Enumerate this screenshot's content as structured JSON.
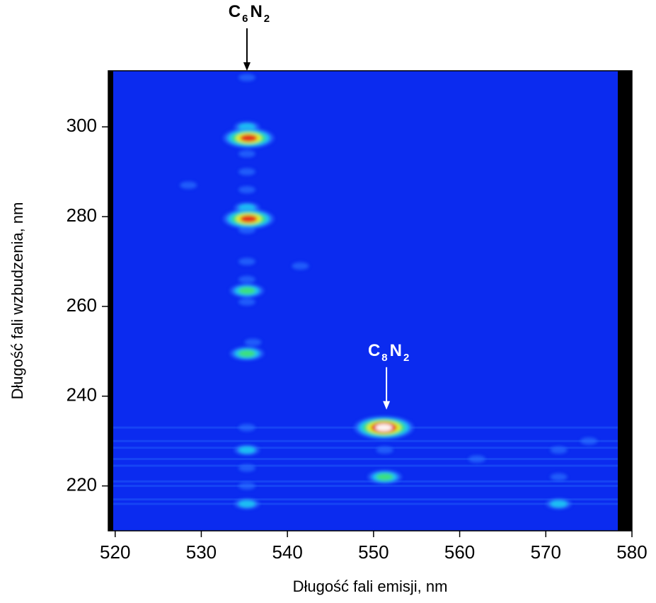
{
  "chart_data": {
    "type": "heatmap",
    "x_label": "Długość fali emisji,  nm",
    "y_label": "Długość fali wzbudzenia, nm",
    "xlim": [
      519.2,
      580
    ],
    "ylim": [
      210,
      312.5
    ],
    "xticks": [
      520,
      530,
      540,
      550,
      560,
      570,
      580
    ],
    "yticks": [
      220,
      240,
      260,
      280,
      300
    ],
    "background_color": "#0b2bef",
    "level_colors": [
      "#2a72ff",
      "#1fc4f2",
      "#3de07a",
      "#e9ef24",
      "#e2261a",
      "#ffffff"
    ],
    "peaks": [
      {
        "x": 535.3,
        "y": 311,
        "intensity": 1
      },
      {
        "x": 535.3,
        "y": 300,
        "intensity": 2
      },
      {
        "x": 535.5,
        "y": 297.5,
        "intensity": 5
      },
      {
        "x": 535.3,
        "y": 294,
        "intensity": 1
      },
      {
        "x": 535.3,
        "y": 290,
        "intensity": 1
      },
      {
        "x": 535.3,
        "y": 286,
        "intensity": 1
      },
      {
        "x": 535.3,
        "y": 282,
        "intensity": 2
      },
      {
        "x": 535.5,
        "y": 279.5,
        "intensity": 5
      },
      {
        "x": 535.3,
        "y": 277,
        "intensity": 1
      },
      {
        "x": 535.3,
        "y": 270,
        "intensity": 1
      },
      {
        "x": 535.3,
        "y": 266,
        "intensity": 1
      },
      {
        "x": 535.3,
        "y": 263.5,
        "intensity": 3
      },
      {
        "x": 535.3,
        "y": 261,
        "intensity": 1
      },
      {
        "x": 536,
        "y": 252,
        "intensity": 1
      },
      {
        "x": 535.3,
        "y": 249.5,
        "intensity": 3
      },
      {
        "x": 535.3,
        "y": 233,
        "intensity": 1
      },
      {
        "x": 535.3,
        "y": 228,
        "intensity": 2
      },
      {
        "x": 535.3,
        "y": 224,
        "intensity": 1
      },
      {
        "x": 535.3,
        "y": 220,
        "intensity": 1
      },
      {
        "x": 535.3,
        "y": 216,
        "intensity": 2
      },
      {
        "x": 551.2,
        "y": 233,
        "intensity": 6
      },
      {
        "x": 551.3,
        "y": 228,
        "intensity": 1
      },
      {
        "x": 551.3,
        "y": 222,
        "intensity": 3
      },
      {
        "x": 571.5,
        "y": 228,
        "intensity": 1
      },
      {
        "x": 571.5,
        "y": 222,
        "intensity": 1
      },
      {
        "x": 571.5,
        "y": 216,
        "intensity": 2
      },
      {
        "x": 528.5,
        "y": 287,
        "intensity": 1
      },
      {
        "x": 541.5,
        "y": 269,
        "intensity": 1
      },
      {
        "x": 575,
        "y": 230,
        "intensity": 1
      },
      {
        "x": 562,
        "y": 226,
        "intensity": 1
      }
    ],
    "bands": [
      {
        "y": 233,
        "intensity": 1
      },
      {
        "y": 230,
        "intensity": 1
      },
      {
        "y": 228.5,
        "intensity": 1
      },
      {
        "y": 226,
        "intensity": 1
      },
      {
        "y": 224.5,
        "intensity": 1
      },
      {
        "y": 221,
        "intensity": 1
      },
      {
        "y": 220,
        "intensity": 1
      },
      {
        "y": 217,
        "intensity": 1
      },
      {
        "y": 216,
        "intensity": 1
      }
    ],
    "annotations": [
      {
        "parts": [
          "C",
          "6",
          "N",
          "2"
        ],
        "x": 535.3,
        "y": 312.5,
        "color": "#000000"
      },
      {
        "parts": [
          "C",
          "8",
          "N",
          "2"
        ],
        "x": 551.5,
        "y": 237,
        "color": "#ffffff"
      }
    ]
  }
}
